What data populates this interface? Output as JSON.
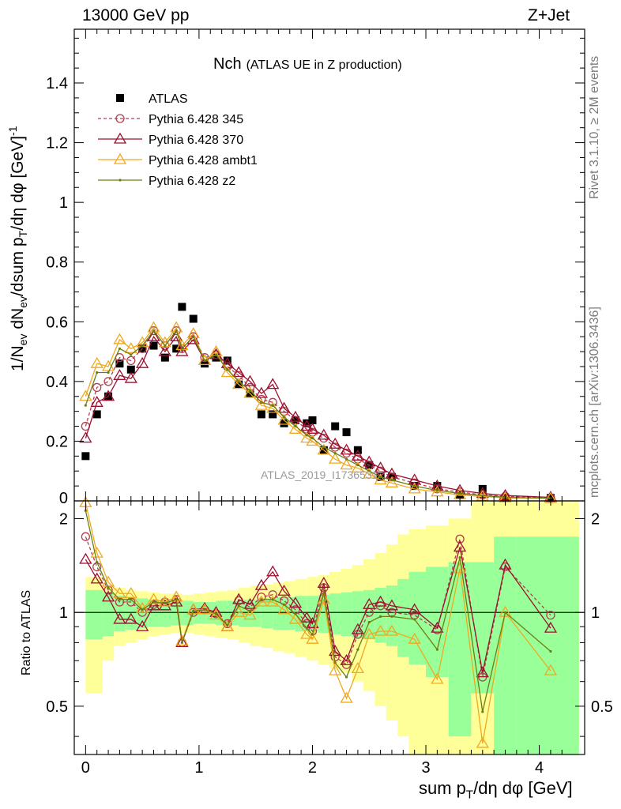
{
  "header": {
    "energy": "13000 GeV pp",
    "process": "Z+Jet"
  },
  "side_labels": {
    "rivet": "Rivet 3.1.10, ≥ 2M events",
    "mcplots": "mcplots.cern.ch [arXiv:1306.3436]"
  },
  "watermark": "ATLAS_2019_I1736531",
  "chart_data": {
    "type": "scatter",
    "title": "Nch",
    "subtitle": "(ATLAS UE in Z production)",
    "xlabel": "sum pT/dη dφ [GeV]",
    "ylabel": "1/Nev dNev/dsum pT/dη dφ [GeV]^-1",
    "ratio_ylabel": "Ratio to ATLAS",
    "xlim": [
      -0.1,
      4.4
    ],
    "ylim": [
      0,
      1.58
    ],
    "ratio_ylim": [
      0.35,
      2.28
    ],
    "x_ticks": [
      0,
      1,
      2,
      3,
      4
    ],
    "y_ticks": [
      0.2,
      0.4,
      0.6,
      0.8,
      1,
      1.2,
      1.4
    ],
    "y_tick_labels": [
      "0.2",
      "0.4",
      "0.6",
      "0.8",
      "1",
      "1.2",
      "1.4"
    ],
    "y_zero_label": "0",
    "ratio_ticks": [
      0.5,
      1,
      2
    ],
    "legend_placement": "upper-left",
    "x": [
      0,
      0.1,
      0.2,
      0.3,
      0.4,
      0.5,
      0.6,
      0.7,
      0.8,
      0.85,
      0.95,
      1.05,
      1.15,
      1.25,
      1.35,
      1.45,
      1.55,
      1.65,
      1.75,
      1.85,
      1.95,
      2.0,
      2.1,
      2.2,
      2.3,
      2.4,
      2.5,
      2.6,
      2.7,
      2.9,
      3.1,
      3.3,
      3.5,
      3.7,
      4.1
    ],
    "series": [
      {
        "name": "ATLAS",
        "color": "#000000",
        "marker": "square",
        "style": "none",
        "values": [
          0.15,
          0.29,
          0.35,
          0.46,
          0.44,
          0.51,
          0.52,
          0.48,
          0.51,
          0.65,
          0.61,
          0.46,
          0.48,
          0.47,
          0.39,
          0.36,
          0.29,
          0.29,
          0.26,
          0.27,
          0.26,
          0.27,
          0.17,
          0.25,
          0.23,
          0.17,
          0.12,
          0.08,
          0.08,
          0.05,
          0.05,
          0.02,
          0.04,
          0.01,
          0.01
        ]
      },
      {
        "name": "Pythia 6.428 345",
        "color": "#b04050",
        "marker": "circle",
        "style": "dashed",
        "values": [
          0.25,
          0.38,
          0.4,
          0.48,
          0.47,
          0.51,
          0.57,
          0.52,
          0.57,
          0.51,
          0.55,
          0.48,
          0.49,
          0.45,
          0.42,
          0.38,
          0.34,
          0.33,
          0.3,
          0.27,
          0.24,
          0.23,
          0.21,
          0.18,
          0.16,
          0.14,
          0.12,
          0.1,
          0.08,
          0.06,
          0.04,
          0.03,
          0.02,
          0.015,
          0.01
        ]
      },
      {
        "name": "Pythia 6.428 370",
        "color": "#9c1030",
        "marker": "triangle",
        "style": "solid",
        "values": [
          0.21,
          0.33,
          0.35,
          0.42,
          0.41,
          0.46,
          0.55,
          0.5,
          0.55,
          0.5,
          0.54,
          0.47,
          0.49,
          0.46,
          0.43,
          0.4,
          0.36,
          0.39,
          0.31,
          0.28,
          0.25,
          0.24,
          0.22,
          0.19,
          0.17,
          0.15,
          0.13,
          0.11,
          0.09,
          0.07,
          0.05,
          0.035,
          0.025,
          0.018,
          0.012
        ]
      },
      {
        "name": "Pythia 6.428 ambt1",
        "color": "#f0a820",
        "marker": "triangle",
        "style": "solid",
        "values": [
          0.35,
          0.46,
          0.45,
          0.54,
          0.51,
          0.53,
          0.58,
          0.53,
          0.58,
          0.52,
          0.56,
          0.47,
          0.5,
          0.43,
          0.39,
          0.36,
          0.32,
          0.31,
          0.27,
          0.24,
          0.21,
          0.2,
          0.17,
          0.14,
          0.12,
          0.11,
          0.09,
          0.07,
          0.06,
          0.04,
          0.03,
          0.02,
          0.015,
          0.01,
          0.008
        ]
      },
      {
        "name": "Pythia 6.428 z2",
        "color": "#6b7f10",
        "marker": "dot",
        "style": "solid",
        "values": [
          0.32,
          0.43,
          0.43,
          0.51,
          0.49,
          0.52,
          0.57,
          0.52,
          0.57,
          0.51,
          0.55,
          0.47,
          0.49,
          0.44,
          0.4,
          0.37,
          0.33,
          0.32,
          0.28,
          0.25,
          0.22,
          0.21,
          0.18,
          0.16,
          0.14,
          0.12,
          0.1,
          0.08,
          0.07,
          0.05,
          0.035,
          0.025,
          0.018,
          0.012,
          0.009
        ]
      }
    ],
    "ratio_series": [
      {
        "name": "Pythia 6.428 345",
        "values": [
          1.75,
          1.4,
          1.18,
          1.08,
          1.08,
          1.0,
          1.06,
          1.08,
          1.1,
          0.8,
          1.0,
          1.02,
          0.99,
          0.92,
          1.09,
          1.04,
          1.12,
          1.14,
          1.09,
          1.02,
          0.92,
          0.87,
          1.2,
          0.72,
          0.68,
          0.85,
          1.0,
          1.05,
          1.0,
          0.98,
          0.88,
          1.72,
          0.62,
          1.4,
          0.98
        ]
      },
      {
        "name": "Pythia 6.428 370",
        "values": [
          1.48,
          1.28,
          1.12,
          0.95,
          0.95,
          0.9,
          1.05,
          1.05,
          1.08,
          0.8,
          1.02,
          1.03,
          1.0,
          0.9,
          1.1,
          1.06,
          1.22,
          1.35,
          1.17,
          1.07,
          0.96,
          0.92,
          1.24,
          0.75,
          0.7,
          0.88,
          1.06,
          1.08,
          1.05,
          1.02,
          0.89,
          1.62,
          0.64,
          1.42,
          0.89
        ]
      },
      {
        "name": "Pythia 6.428 ambt1",
        "values": [
          2.25,
          1.55,
          1.25,
          1.15,
          1.15,
          1.03,
          1.1,
          1.08,
          1.12,
          0.81,
          1.02,
          1.02,
          0.98,
          0.9,
          1.0,
          0.98,
          1.08,
          1.08,
          1.02,
          0.95,
          0.85,
          0.82,
          1.1,
          0.65,
          0.53,
          0.66,
          0.85,
          0.87,
          0.87,
          0.82,
          0.61,
          1.38,
          0.38,
          1.0,
          0.65
        ]
      },
      {
        "name": "Pythia 6.428 z2",
        "values": [
          2.12,
          1.45,
          1.2,
          1.1,
          1.1,
          1.02,
          1.08,
          1.07,
          1.1,
          0.8,
          1.01,
          1.02,
          0.99,
          0.91,
          1.05,
          1.01,
          1.1,
          1.1,
          1.06,
          0.99,
          0.89,
          0.85,
          1.15,
          0.69,
          0.62,
          0.76,
          0.93,
          0.97,
          0.97,
          0.95,
          0.76,
          1.5,
          0.48,
          1.0,
          0.75
        ]
      }
    ],
    "bands": {
      "edges": [
        0,
        0.15,
        0.25,
        0.35,
        0.45,
        0.55,
        0.65,
        0.75,
        0.85,
        0.95,
        1.05,
        1.15,
        1.25,
        1.35,
        1.45,
        1.55,
        1.65,
        1.75,
        1.85,
        1.95,
        2.05,
        2.15,
        2.25,
        2.35,
        2.45,
        2.55,
        2.65,
        2.75,
        2.85,
        3.0,
        3.2,
        3.4,
        3.6,
        3.8,
        4.35
      ],
      "stat_lo": [
        0.82,
        0.84,
        0.87,
        0.88,
        0.89,
        0.9,
        0.9,
        0.91,
        0.91,
        0.92,
        0.92,
        0.91,
        0.91,
        0.9,
        0.9,
        0.89,
        0.88,
        0.88,
        0.87,
        0.87,
        0.86,
        0.85,
        0.84,
        0.83,
        0.82,
        0.8,
        0.78,
        0.72,
        0.68,
        0.62,
        0.4,
        0.55,
        0.35,
        0.35
      ],
      "stat_hi": [
        1.18,
        1.16,
        1.13,
        1.12,
        1.11,
        1.1,
        1.1,
        1.09,
        1.09,
        1.08,
        1.08,
        1.09,
        1.09,
        1.1,
        1.1,
        1.11,
        1.12,
        1.12,
        1.13,
        1.13,
        1.14,
        1.15,
        1.16,
        1.17,
        1.18,
        1.2,
        1.22,
        1.28,
        1.35,
        1.4,
        1.45,
        1.45,
        1.75,
        1.75
      ],
      "tot_lo": [
        0.55,
        0.7,
        0.78,
        0.8,
        0.82,
        0.84,
        0.85,
        0.86,
        0.86,
        0.85,
        0.84,
        0.83,
        0.82,
        0.8,
        0.78,
        0.77,
        0.75,
        0.74,
        0.72,
        0.7,
        0.68,
        0.66,
        0.64,
        0.6,
        0.56,
        0.5,
        0.45,
        0.4,
        0.35,
        0.35,
        0.35,
        0.35,
        0.35,
        0.35
      ],
      "tot_hi": [
        1.3,
        1.22,
        1.2,
        1.18,
        1.17,
        1.16,
        1.15,
        1.15,
        1.14,
        1.15,
        1.16,
        1.17,
        1.18,
        1.2,
        1.22,
        1.23,
        1.25,
        1.26,
        1.28,
        1.3,
        1.32,
        1.35,
        1.38,
        1.42,
        1.48,
        1.55,
        1.65,
        1.78,
        1.85,
        1.9,
        2.0,
        2.28,
        2.28,
        2.28
      ]
    }
  }
}
